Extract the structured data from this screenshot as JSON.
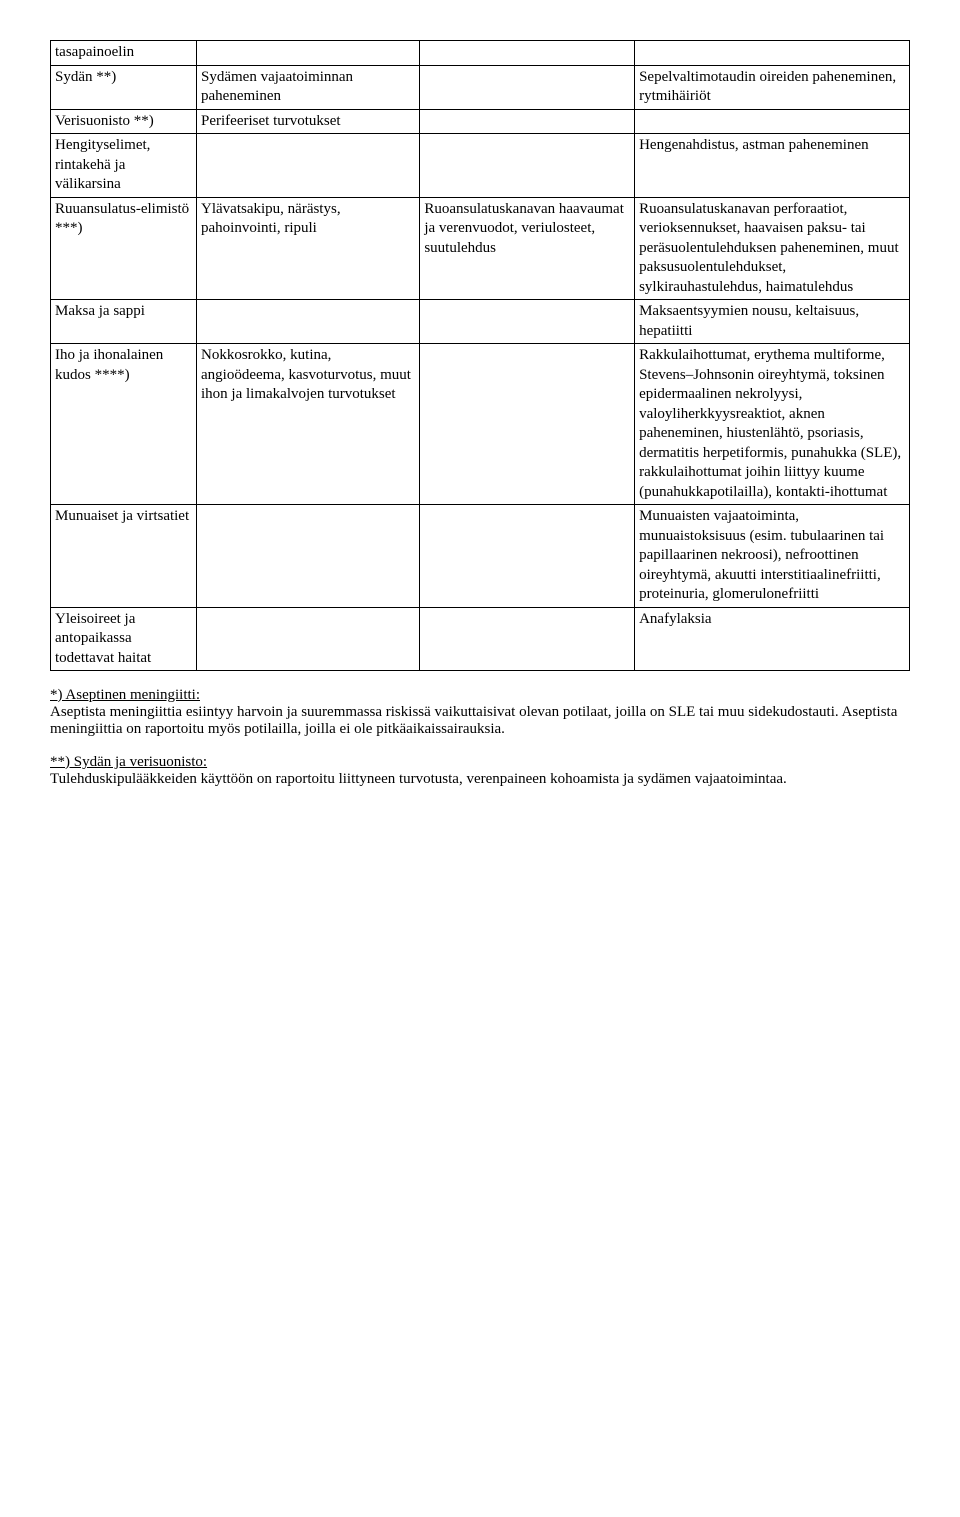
{
  "table": {
    "rows": [
      {
        "c1": "tasapainoelin",
        "c2": "",
        "c3": "",
        "c4": ""
      },
      {
        "c1": "Sydän **)",
        "c2": "Sydämen vajaatoiminnan paheneminen",
        "c3": "",
        "c4": "Sepelvaltimotaudin oireiden paheneminen, rytmihäiriöt"
      },
      {
        "c1": "Verisuonisto **)",
        "c2": "Perifeeriset turvotukset",
        "c3": "",
        "c4": ""
      },
      {
        "c1": "Hengityselimet, rintakehä ja välikarsina",
        "c2": "",
        "c3": "",
        "c4": "Hengenahdistus, astman paheneminen"
      },
      {
        "c1": "Ruuansulatus-elimistö ***)",
        "c2": "Ylävatsakipu, närästys, pahoinvointi, ripuli",
        "c3": "Ruoansulatuskanavan haavaumat ja verenvuodot, veriulosteet, suutulehdus",
        "c4": "Ruoansulatuskanavan perforaatiot, verioksennukset, haavaisen paksu- tai peräsuolentulehduksen paheneminen, muut paksusuolentulehdukset, sylkirauhastulehdus, haimatulehdus"
      },
      {
        "c1": "Maksa ja sappi",
        "c2": "",
        "c3": "",
        "c4": "Maksaentsyymien nousu, keltaisuus, hepatiitti"
      },
      {
        "c1": "Iho ja ihonalainen kudos ****)",
        "c2": "Nokkosrokko, kutina, angioödeema, kasvoturvotus, muut ihon ja limakalvojen turvotukset",
        "c3": "",
        "c4": "Rakkulaihottumat, erythema multiforme, Stevens–Johnsonin oireyhtymä, toksinen epidermaalinen nekrolyysi, valoyliherkkyysreaktiot, aknen paheneminen, hiustenlähtö, psoriasis, dermatitis herpetiformis, punahukka (SLE), rakkulaihottumat joihin liittyy kuume (punahukkapotilailla), kontakti-ihottumat"
      },
      {
        "c1": "Munuaiset ja virtsatiet",
        "c2": "",
        "c3": "",
        "c4": "Munuaisten vajaatoiminta, munuaistoksisuus (esim. tubulaarinen tai papillaarinen nekroosi), nefroottinen oireyhtymä, akuutti interstitiaalinefriitti, proteinuria, glomerulonefriitti"
      },
      {
        "c1": "Yleisoireet ja antopaikassa todettavat haitat",
        "c2": "",
        "c3": "",
        "c4": "Anafylaksia"
      }
    ]
  },
  "notes": {
    "n1_title": "*) Aseptinen meningiitti:",
    "n1_body": "Aseptista meningiittia esiintyy harvoin ja suuremmassa riskissä vaikuttaisivat olevan potilaat, joilla on SLE tai muu sidekudostauti. Aseptista meningiittia on raportoitu myös potilailla, joilla ei ole pitkäaikaissairauksia.",
    "n2_title": "**) Sydän ja verisuonisto:",
    "n2_body": "Tulehduskipulääkkeiden käyttöön on raportoitu liittyneen turvotusta, verenpaineen kohoamista ja sydämen vajaatoimintaa."
  }
}
